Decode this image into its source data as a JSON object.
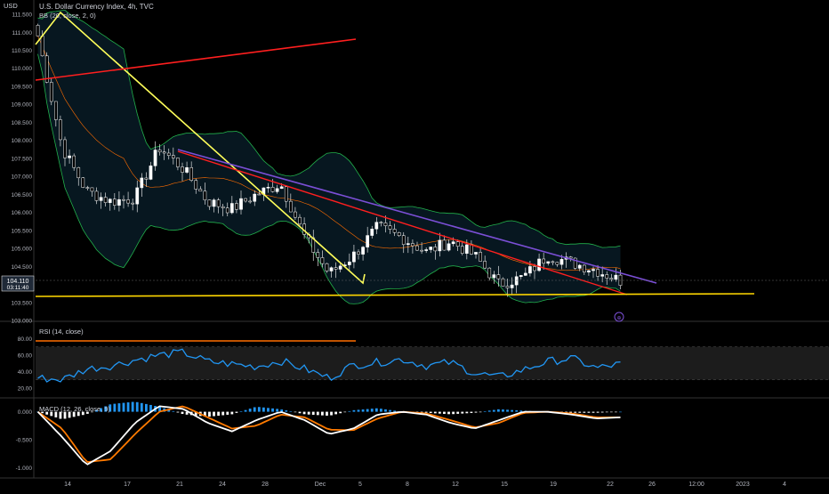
{
  "header": {
    "symbol": "U.S. Dollar Currency Index, 4h, TVC",
    "bb_label": "BB (20, close, 2, 0)",
    "currency": "USD"
  },
  "price_panel": {
    "y_ticks": [
      "111.500",
      "111.000",
      "110.500",
      "110.000",
      "109.500",
      "109.000",
      "108.500",
      "108.000",
      "107.500",
      "107.000",
      "106.500",
      "106.000",
      "105.500",
      "105.000",
      "104.500",
      "104.000",
      "103.500",
      "103.000"
    ],
    "y_values": [
      111.5,
      111.0,
      110.5,
      110.0,
      109.5,
      109.0,
      108.5,
      108.0,
      107.5,
      107.0,
      106.5,
      106.0,
      105.5,
      105.0,
      104.5,
      104.0,
      103.5,
      103.0
    ],
    "last_price": "104.110",
    "countdown": "03:11:40"
  },
  "rsi_panel": {
    "label": "RSI (14, close)",
    "y_ticks": [
      "80.00",
      "60.00",
      "40.00",
      "20.00"
    ],
    "y_values": [
      80,
      60,
      40,
      20
    ]
  },
  "macd_panel": {
    "label": "MACD (12, 26, close, 9)",
    "y_ticks": [
      "0.000",
      "-0.500",
      "-1.000"
    ],
    "y_values": [
      0,
      -0.5,
      -1.0
    ]
  },
  "x_axis": {
    "labels": [
      "14",
      "17",
      "21",
      "24",
      "28",
      "Dec",
      "5",
      "8",
      "12",
      "15",
      "19",
      "22",
      "26",
      "12:00",
      "2023",
      "4"
    ]
  },
  "colors": {
    "up": "#ffffff",
    "down": "#000000",
    "bb": "#22b14c",
    "basis": "#ff6d00",
    "trend_yellow": "#ffff5a",
    "trend_red": "#ff1f1f",
    "trend_purple": "#7b4fd6",
    "support": "#ffd700",
    "rsi": "#2196f3",
    "macd_hist_pos": "#2196f3",
    "macd_line": "#ffffff",
    "signal_line": "#ff7a00"
  },
  "chart_data": [
    {
      "type": "candlestick",
      "title": "U.S. Dollar Currency Index, 4h, TVC",
      "ylabel": "USD",
      "ylim": [
        103.0,
        111.6
      ],
      "x_labels": [
        "14",
        "17",
        "21",
        "24",
        "28",
        "Dec",
        "5",
        "8",
        "12",
        "15",
        "19",
        "22"
      ],
      "close_path": [
        110.9,
        107.8,
        106.6,
        106.3,
        106.4,
        107.8,
        107.2,
        106.3,
        106.1,
        106.5,
        106.8,
        105.3,
        104.3,
        104.8,
        105.6,
        105.3,
        104.9,
        105.2,
        104.8,
        104.0,
        104.2,
        104.8,
        104.6,
        104.4,
        104.1
      ],
      "annotations": [
        "yellow descending trendline",
        "red rising trendline",
        "purple descending trendline",
        "red descending trendline",
        "yellow support line near 103.7"
      ]
    },
    {
      "type": "line",
      "title": "RSI (14, close)",
      "ylim": [
        10,
        100
      ],
      "values": [
        32,
        30,
        43,
        47,
        54,
        60,
        63,
        52,
        49,
        46,
        53,
        43,
        32,
        48,
        51,
        55,
        47,
        51,
        38,
        33,
        42,
        52,
        56,
        44,
        49
      ]
    },
    {
      "type": "bar",
      "title": "MACD (12, 26, close, 9)",
      "ylim": [
        -1.15,
        0.2
      ],
      "macd": [
        0.0,
        -0.45,
        -0.95,
        -0.7,
        -0.2,
        0.1,
        0.05,
        -0.2,
        -0.35,
        -0.15,
        0.0,
        -0.15,
        -0.4,
        -0.3,
        -0.05,
        0.0,
        -0.05,
        -0.2,
        -0.3,
        -0.15,
        0.0,
        0.0,
        -0.05,
        -0.12,
        -0.1
      ],
      "signal": [
        0.0,
        -0.3,
        -0.9,
        -0.85,
        -0.4,
        0.0,
        0.1,
        -0.1,
        -0.3,
        -0.25,
        -0.05,
        -0.1,
        -0.32,
        -0.33,
        -0.12,
        0.0,
        -0.03,
        -0.15,
        -0.28,
        -0.2,
        -0.02,
        0.0,
        -0.03,
        -0.1,
        -0.1
      ]
    }
  ]
}
